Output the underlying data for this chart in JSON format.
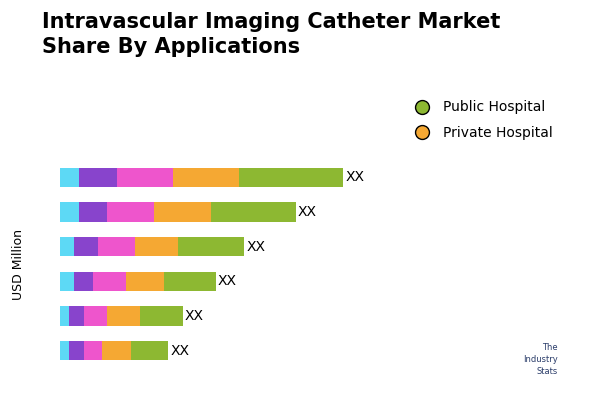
{
  "title": "Intravascular Imaging Catheter Market\nShare By Applications",
  "ylabel": "USD Million",
  "colors": [
    "#5DD9F5",
    "#8844CC",
    "#EE55CC",
    "#F5A833",
    "#8DB832"
  ],
  "bar_values": [
    [
      4,
      8,
      12,
      14,
      22
    ],
    [
      4,
      6,
      10,
      12,
      18
    ],
    [
      3,
      5,
      8,
      9,
      14
    ],
    [
      3,
      4,
      7,
      8,
      11
    ],
    [
      2,
      3,
      5,
      7,
      9
    ],
    [
      2,
      3,
      4,
      6,
      8
    ]
  ],
  "legend_labels": [
    "Public Hospital",
    "Private Hospital"
  ],
  "legend_colors": [
    "#8DB832",
    "#F5A833"
  ],
  "label_text": "XX",
  "background_color": "#FFFFFF",
  "title_fontsize": 15,
  "label_fontsize": 10
}
